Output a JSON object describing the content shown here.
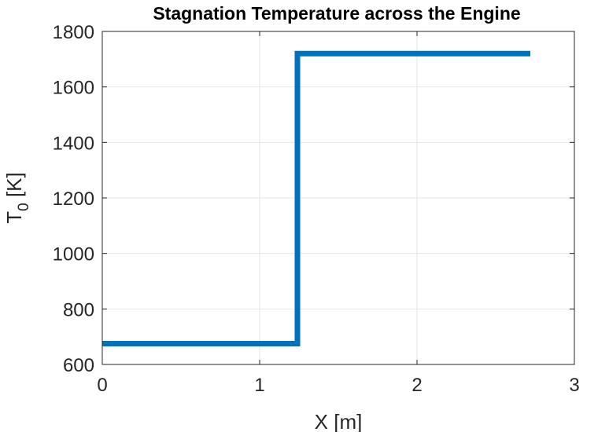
{
  "chart_data": {
    "type": "line",
    "title": "Stagnation Temperature across the Engine",
    "xlabel": "X [m]",
    "ylabel_main": "T",
    "ylabel_sub": "0",
    "ylabel_unit": " [K]",
    "xlim": [
      0,
      3
    ],
    "ylim": [
      600,
      1800
    ],
    "xticks": [
      0,
      1,
      2,
      3
    ],
    "xtick_labels": [
      "0",
      "1",
      "2",
      "3"
    ],
    "yticks": [
      600,
      800,
      1000,
      1200,
      1400,
      1600,
      1800
    ],
    "ytick_labels": [
      "600",
      "800",
      "1000",
      "1200",
      "1400",
      "1600",
      "1800"
    ],
    "grid": true,
    "series": [
      {
        "color": "#0072BD",
        "x": [
          0,
          1.24,
          1.24,
          2.72
        ],
        "y": [
          675,
          675,
          1720,
          1720
        ]
      }
    ]
  }
}
